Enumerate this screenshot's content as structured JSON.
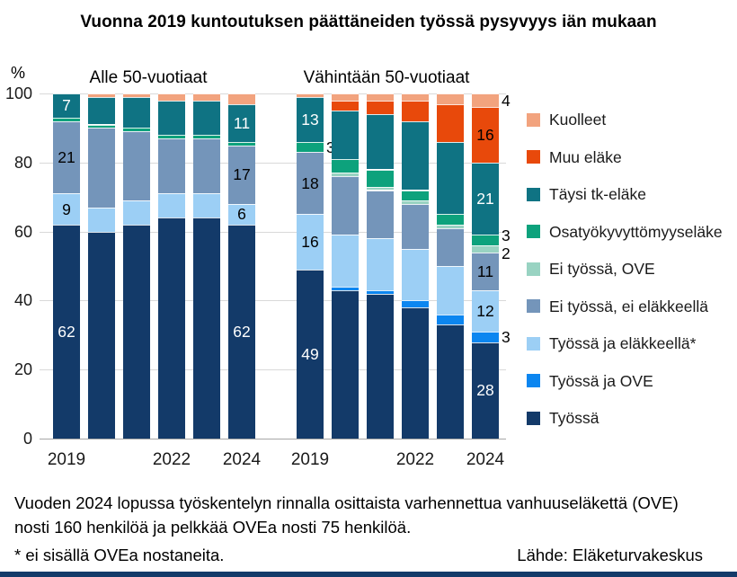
{
  "title": "Vuonna 2019 kuntoutuksen päättäneiden työssä pysyvyys iän mukaan",
  "chart_data": {
    "type": "bar",
    "subtype": "stacked-100-percent",
    "unit": "%",
    "ylim": [
      0,
      100
    ],
    "yticks": [
      0,
      20,
      40,
      60,
      80,
      100
    ],
    "grid": "horizontal",
    "legend_position": "right",
    "series": [
      {
        "name": "Työssä",
        "slug": "tyossa",
        "color": "#133A69",
        "label_color": "#FFFFFF"
      },
      {
        "name": "Työssä ja OVE",
        "slug": "tyossa-ja-ove",
        "color": "#0C86F0",
        "label_color": "#000000"
      },
      {
        "name": "Työssä ja eläkkeellä*",
        "slug": "tyossa-ja-elakkeella",
        "color": "#9CCFF5",
        "label_color": "#000000"
      },
      {
        "name": "Ei työssä, ei eläkkeellä",
        "slug": "ei-tyossa-ei-elakkeella",
        "color": "#7495BA",
        "label_color": "#000000"
      },
      {
        "name": "Ei työssä, OVE",
        "slug": "ei-tyossa-ove",
        "color": "#99D3C2",
        "label_color": "#000000"
      },
      {
        "name": "Osatyökyvyttömyyseläke",
        "slug": "osatyokyvyttomyyselake",
        "color": "#0DA27C",
        "label_color": "#000000"
      },
      {
        "name": "Täysi tk-eläke",
        "slug": "taysi-tk-elake",
        "color": "#0F7383",
        "label_color": "#FFFFFF"
      },
      {
        "name": "Muu eläke",
        "slug": "muu-elake",
        "color": "#E8490B",
        "label_color": "#000000"
      },
      {
        "name": "Kuolleet",
        "slug": "kuolleet",
        "color": "#F2A37E",
        "label_color": "#000000"
      }
    ],
    "groups": [
      {
        "label": "Alle 50-vuotiaat",
        "xtick_labels": [
          {
            "text": "2019",
            "bar": 0
          },
          {
            "text": "2022",
            "bar": 3
          },
          {
            "text": "2024",
            "bar": 5
          }
        ],
        "bars": [
          {
            "values": [
              62,
              0,
              9,
              21,
              0,
              1,
              7,
              0,
              0
            ],
            "labels": [
              {
                "series": 0,
                "side": "in"
              },
              {
                "series": 2,
                "side": "in"
              },
              {
                "series": 3,
                "side": "in"
              },
              {
                "series": 6,
                "side": "in"
              }
            ]
          },
          {
            "values": [
              60,
              0,
              7,
              23,
              0,
              1,
              8,
              0,
              1
            ],
            "labels": []
          },
          {
            "values": [
              62,
              0,
              7,
              20,
              0,
              1,
              9,
              0,
              1
            ],
            "labels": []
          },
          {
            "values": [
              64,
              0,
              7,
              16,
              0,
              1,
              10,
              0,
              2
            ],
            "labels": []
          },
          {
            "values": [
              64,
              0,
              7,
              16,
              0,
              1,
              10,
              0,
              2
            ],
            "labels": []
          },
          {
            "values": [
              62,
              0,
              6,
              17,
              0,
              1,
              11,
              0,
              3
            ],
            "labels": [
              {
                "series": 0,
                "side": "in"
              },
              {
                "series": 2,
                "side": "in"
              },
              {
                "series": 3,
                "side": "in"
              },
              {
                "series": 6,
                "side": "in"
              }
            ]
          }
        ]
      },
      {
        "label": "Vähintään 50-vuotiaat",
        "xtick_labels": [
          {
            "text": "2019",
            "bar": 0
          },
          {
            "text": "2022",
            "bar": 3
          },
          {
            "text": "2024",
            "bar": 5
          }
        ],
        "bars": [
          {
            "values": [
              49,
              0,
              16,
              18,
              0,
              3,
              13,
              0,
              1
            ],
            "labels": [
              {
                "series": 0,
                "side": "in"
              },
              {
                "series": 2,
                "side": "in"
              },
              {
                "series": 3,
                "side": "in"
              },
              {
                "series": 5,
                "side": "out"
              },
              {
                "series": 6,
                "side": "in"
              }
            ]
          },
          {
            "values": [
              43,
              1,
              15,
              17,
              1,
              4,
              14,
              3,
              2
            ],
            "labels": []
          },
          {
            "values": [
              42,
              1,
              15,
              14,
              1,
              5,
              16,
              4,
              2
            ],
            "labels": []
          },
          {
            "values": [
              38,
              2,
              15,
              13,
              1,
              3,
              20,
              6,
              2
            ],
            "labels": []
          },
          {
            "values": [
              33,
              3,
              14,
              11,
              1,
              3,
              21,
              11,
              3
            ],
            "labels": []
          },
          {
            "values": [
              28,
              3,
              12,
              11,
              2,
              3,
              21,
              16,
              4
            ],
            "labels": [
              {
                "series": 0,
                "side": "in"
              },
              {
                "series": 1,
                "side": "out"
              },
              {
                "series": 2,
                "side": "in"
              },
              {
                "series": 3,
                "side": "in"
              },
              {
                "series": 4,
                "side": "out",
                "dy": 5
              },
              {
                "series": 5,
                "side": "out",
                "dy": -5
              },
              {
                "series": 6,
                "side": "in"
              },
              {
                "series": 7,
                "side": "in"
              },
              {
                "series": 8,
                "side": "out"
              }
            ]
          }
        ]
      }
    ]
  },
  "footer": {
    "note": "Vuoden 2024 lopussa työskentelyn rinnalla osittaista varhennettua vanhuuseläkettä (OVE) nosti 160 henkilöä ja pelkkää OVEa nosti 75 henkilöä.",
    "footnote": "* ei sisällä OVEa nostaneita.",
    "source": "Lähde: Eläketurvakeskus"
  },
  "brand_color": "#133A69"
}
